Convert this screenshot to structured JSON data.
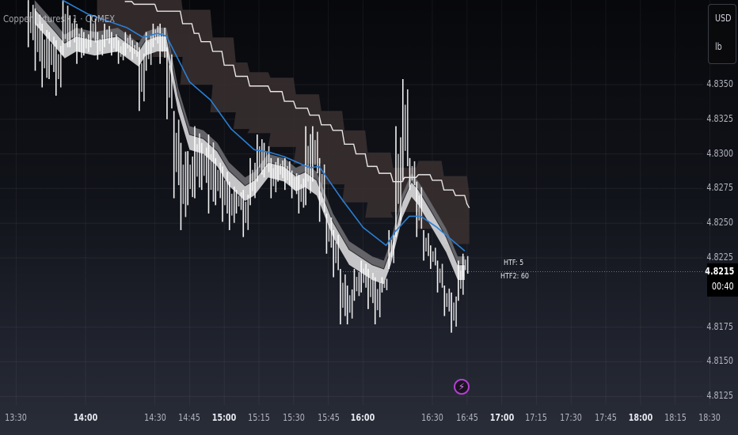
{
  "header": {
    "symbol": "Copper Futures · 1 · COMEX"
  },
  "currency": {
    "code": "USD",
    "unit": "lb"
  },
  "indicator_labels": {
    "htf": "HTF: 5",
    "htf2": "HTF2: 60"
  },
  "last_price": {
    "value": "4.8215",
    "countdown": "00:40",
    "price": 4.8215
  },
  "icons": {
    "event": "lightning-icon"
  },
  "colors": {
    "ma": "#2a7fd4",
    "step": "#e8e6e6",
    "cloud": "#3a3030",
    "ribbon_light": "#d9d9db",
    "ribbon_dark": "#6b6b70",
    "bars": "#ffffff",
    "event": "#b43fd1"
  },
  "chart_data": {
    "type": "candlestick",
    "title": "Copper Futures · 1 · COMEX",
    "timeframe": "1",
    "ylim": [
      4.8112,
      4.8411
    ],
    "grid": true,
    "y_ticks": [
      "4.8350",
      "4.8325",
      "4.8300",
      "4.8275",
      "4.8250",
      "4.8225",
      "4.8175",
      "4.8150",
      "4.8125"
    ],
    "x_ticks": [
      {
        "label": "13:30",
        "bold": false
      },
      {
        "label": "14:00",
        "bold": true
      },
      {
        "label": "14:30",
        "bold": false
      },
      {
        "label": "14:45",
        "bold": false
      },
      {
        "label": "15:00",
        "bold": true
      },
      {
        "label": "15:15",
        "bold": false
      },
      {
        "label": "15:30",
        "bold": false
      },
      {
        "label": "15:45",
        "bold": false
      },
      {
        "label": "16:00",
        "bold": true
      },
      {
        "label": "16:30",
        "bold": false
      },
      {
        "label": "16:45",
        "bold": false
      },
      {
        "label": "17:00",
        "bold": true
      },
      {
        "label": "17:15",
        "bold": false
      },
      {
        "label": "17:30",
        "bold": false
      },
      {
        "label": "17:45",
        "bold": false
      },
      {
        "label": "18:00",
        "bold": true
      },
      {
        "label": "18:15",
        "bold": false
      },
      {
        "label": "18:30",
        "bold": false
      }
    ],
    "bars": [
      [
        "13:36",
        4.8411,
        4.8377
      ],
      [
        "13:39",
        4.8405,
        4.836
      ],
      [
        "13:42",
        4.8394,
        4.8348
      ],
      [
        "13:45",
        4.8388,
        4.8354
      ],
      [
        "13:48",
        4.8382,
        4.8342
      ],
      [
        "13:51",
        4.8411,
        4.8371
      ],
      [
        "13:54",
        4.84,
        4.8377
      ],
      [
        "13:57",
        4.8394,
        4.8365
      ],
      [
        "14:00",
        4.8388,
        4.8371
      ],
      [
        "14:03",
        4.84,
        4.8377
      ],
      [
        "14:06",
        4.8388,
        4.8368
      ],
      [
        "14:09",
        4.8394,
        4.8377
      ],
      [
        "14:12",
        4.8388,
        4.8371
      ],
      [
        "14:15",
        4.8382,
        4.8365
      ],
      [
        "14:18",
        4.8388,
        4.8371
      ],
      [
        "14:21",
        4.8382,
        4.8368
      ],
      [
        "14:24",
        4.8377,
        4.8331
      ],
      [
        "14:27",
        4.8388,
        4.836
      ],
      [
        "14:30",
        4.8394,
        4.8377
      ],
      [
        "14:33",
        4.8394,
        4.8365
      ],
      [
        "14:36",
        4.8377,
        4.8325
      ],
      [
        "14:39",
        4.8331,
        4.8268
      ],
      [
        "14:42",
        4.8308,
        4.8245
      ],
      [
        "14:45",
        4.8302,
        4.8263
      ],
      [
        "14:48",
        4.832,
        4.8268
      ],
      [
        "14:51",
        4.8308,
        4.8274
      ],
      [
        "14:54",
        4.8314,
        4.8257
      ],
      [
        "14:57",
        4.8297,
        4.8263
      ],
      [
        "15:00",
        4.8291,
        4.8251
      ],
      [
        "15:03",
        4.828,
        4.8245
      ],
      [
        "15:06",
        4.8274,
        4.8257
      ],
      [
        "15:09",
        4.8274,
        4.824
      ],
      [
        "15:12",
        4.8297,
        4.8263
      ],
      [
        "15:15",
        4.8314,
        4.828
      ],
      [
        "15:18",
        4.8308,
        4.8283
      ],
      [
        "15:21",
        4.8297,
        4.8268
      ],
      [
        "15:24",
        4.8297,
        4.828
      ],
      [
        "15:27",
        4.8297,
        4.8274
      ],
      [
        "15:30",
        4.8288,
        4.8268
      ],
      [
        "15:33",
        4.8285,
        4.8257
      ],
      [
        "15:36",
        4.832,
        4.8263
      ],
      [
        "15:39",
        4.832,
        4.828
      ],
      [
        "15:42",
        4.8297,
        4.8251
      ],
      [
        "15:45",
        4.8257,
        4.8228
      ],
      [
        "15:48",
        4.8245,
        4.8211
      ],
      [
        "15:51",
        4.8217,
        4.8177
      ],
      [
        "15:54",
        4.8205,
        4.8177
      ],
      [
        "15:57",
        4.8217,
        4.8194
      ],
      [
        "16:00",
        4.8223,
        4.82
      ],
      [
        "16:03",
        4.8217,
        4.8188
      ],
      [
        "16:06",
        4.8211,
        4.8177
      ],
      [
        "16:09",
        4.8211,
        4.82
      ],
      [
        "16:12",
        4.8245,
        4.8217
      ],
      [
        "16:15",
        4.832,
        4.824
      ],
      [
        "16:18",
        4.8354,
        4.828
      ],
      [
        "16:21",
        4.8297,
        4.8274
      ],
      [
        "16:24",
        4.828,
        4.824
      ],
      [
        "16:27",
        4.8245,
        4.8223
      ],
      [
        "16:30",
        4.8234,
        4.8217
      ],
      [
        "16:33",
        4.8223,
        4.82
      ],
      [
        "16:36",
        4.8205,
        4.8183
      ],
      [
        "16:39",
        4.82,
        4.8171
      ],
      [
        "16:42",
        4.8223,
        4.8194
      ],
      [
        "16:44",
        4.8228,
        4.8211
      ]
    ],
    "ma_line": [
      [
        "13:50",
        4.8411
      ],
      [
        "14:01",
        4.8401
      ],
      [
        "14:18",
        4.8391
      ],
      [
        "14:25",
        4.8384
      ],
      [
        "14:31",
        4.8387
      ],
      [
        "14:35",
        4.8385
      ],
      [
        "14:45",
        4.8352
      ],
      [
        "14:54",
        4.8339
      ],
      [
        "15:03",
        4.8318
      ],
      [
        "15:13",
        4.8303
      ],
      [
        "15:20",
        4.8301
      ],
      [
        "15:26",
        4.8298
      ],
      [
        "15:37",
        4.829
      ],
      [
        "15:41",
        4.8291
      ],
      [
        "15:51",
        4.8267
      ],
      [
        "16:00",
        4.8247
      ],
      [
        "16:10",
        4.8234
      ],
      [
        "16:14",
        4.8244
      ],
      [
        "16:20",
        4.8255
      ],
      [
        "16:25",
        4.8255
      ],
      [
        "16:32",
        4.8247
      ],
      [
        "16:44",
        4.823
      ]
    ],
    "step_line": [
      [
        "14:17",
        4.841
      ],
      [
        "14:21",
        4.8408
      ],
      [
        "14:30",
        4.8408
      ],
      [
        "14:31",
        4.8403
      ],
      [
        "14:37",
        4.8403
      ],
      [
        "14:42",
        4.8394
      ],
      [
        "14:47",
        4.8387
      ],
      [
        "14:50",
        4.8381
      ],
      [
        "14:55",
        4.8374
      ],
      [
        "15:00",
        4.8364
      ],
      [
        "15:05",
        4.8356
      ],
      [
        "15:11",
        4.8349
      ],
      [
        "15:20",
        4.8345
      ],
      [
        "15:26",
        4.8338
      ],
      [
        "15:31",
        4.8333
      ],
      [
        "15:37",
        4.8328
      ],
      [
        "15:42",
        4.8321
      ],
      [
        "15:47",
        4.8317
      ],
      [
        "15:52",
        4.8307
      ],
      [
        "15:57",
        4.83
      ],
      [
        "16:02",
        4.8291
      ],
      [
        "16:07",
        4.8286
      ],
      [
        "16:13",
        4.828
      ],
      [
        "16:18",
        4.8283
      ],
      [
        "16:24",
        4.8285
      ],
      [
        "16:30",
        4.8281
      ],
      [
        "16:35",
        4.8274
      ],
      [
        "16:40",
        4.827
      ],
      [
        "16:45",
        4.8264
      ],
      [
        "16:46",
        4.8261
      ]
    ],
    "cloud": [
      [
        "14:05",
        4.842,
        4.8395
      ],
      [
        "14:17",
        4.842,
        4.8388
      ],
      [
        "14:30",
        4.8418,
        4.8382
      ],
      [
        "14:42",
        4.8404,
        4.837
      ],
      [
        "14:55",
        4.8384,
        4.835
      ],
      [
        "15:05",
        4.8366,
        4.833
      ],
      [
        "15:11",
        4.8359,
        4.8318
      ],
      [
        "15:20",
        4.8355,
        4.8315
      ],
      [
        "15:31",
        4.8343,
        4.8305
      ],
      [
        "15:42",
        4.8331,
        4.8293
      ],
      [
        "15:52",
        4.8317,
        4.8278
      ],
      [
        "16:02",
        4.8301,
        4.8265
      ],
      [
        "16:13",
        4.829,
        4.8254
      ],
      [
        "16:24",
        4.8295,
        4.8258
      ],
      [
        "16:35",
        4.8284,
        4.8246
      ],
      [
        "16:46",
        4.8271,
        4.8235
      ]
    ],
    "ribbon": [
      [
        "13:38",
        4.8411,
        4.8405,
        4.8394
      ],
      [
        "13:47",
        4.8394,
        4.8388,
        4.8377
      ],
      [
        "13:51",
        4.8386,
        4.838,
        4.8369
      ],
      [
        "13:56",
        4.8391,
        4.8385,
        4.8374
      ],
      [
        "14:04",
        4.8388,
        4.8382,
        4.8371
      ],
      [
        "14:14",
        4.8391,
        4.8385,
        4.8374
      ],
      [
        "14:23",
        4.838,
        4.8374,
        4.8363
      ],
      [
        "14:26",
        4.8388,
        4.8382,
        4.8371
      ],
      [
        "14:31",
        4.8391,
        4.8385,
        4.8374
      ],
      [
        "14:35",
        4.8391,
        4.8385,
        4.8374
      ],
      [
        "14:40",
        4.8348,
        4.8342,
        4.8331
      ],
      [
        "14:45",
        4.832,
        4.8314,
        4.8303
      ],
      [
        "14:51",
        4.8317,
        4.8311,
        4.83
      ],
      [
        "14:57",
        4.8308,
        4.8302,
        4.8291
      ],
      [
        "15:02",
        4.8294,
        4.8288,
        4.8277
      ],
      [
        "15:09",
        4.8283,
        4.8277,
        4.8266
      ],
      [
        "15:13",
        4.8287,
        4.8281,
        4.827
      ],
      [
        "15:19",
        4.83,
        4.8294,
        4.8283
      ],
      [
        "15:26",
        4.8297,
        4.8291,
        4.828
      ],
      [
        "15:31",
        4.829,
        4.8284,
        4.8273
      ],
      [
        "15:35",
        4.8293,
        4.8287,
        4.8276
      ],
      [
        "15:40",
        4.8287,
        4.8281,
        4.827
      ],
      [
        "15:47",
        4.8257,
        4.8251,
        4.824
      ],
      [
        "15:54",
        4.8237,
        4.8231,
        4.822
      ],
      [
        "16:04",
        4.8226,
        4.822,
        4.8209
      ],
      [
        "16:09",
        4.8223,
        4.8217,
        4.8206
      ],
      [
        "16:12",
        4.8237,
        4.8231,
        4.822
      ],
      [
        "16:17",
        4.8271,
        4.8265,
        4.8254
      ],
      [
        "16:21",
        4.8286,
        4.828,
        4.8269
      ],
      [
        "16:24",
        4.828,
        4.8274,
        4.8263
      ],
      [
        "16:29",
        4.8266,
        4.826,
        4.8249
      ],
      [
        "16:36",
        4.8246,
        4.824,
        4.8229
      ],
      [
        "16:41",
        4.8226,
        4.822,
        4.8209
      ],
      [
        "16:44",
        4.8226,
        4.822,
        4.8209
      ]
    ]
  }
}
